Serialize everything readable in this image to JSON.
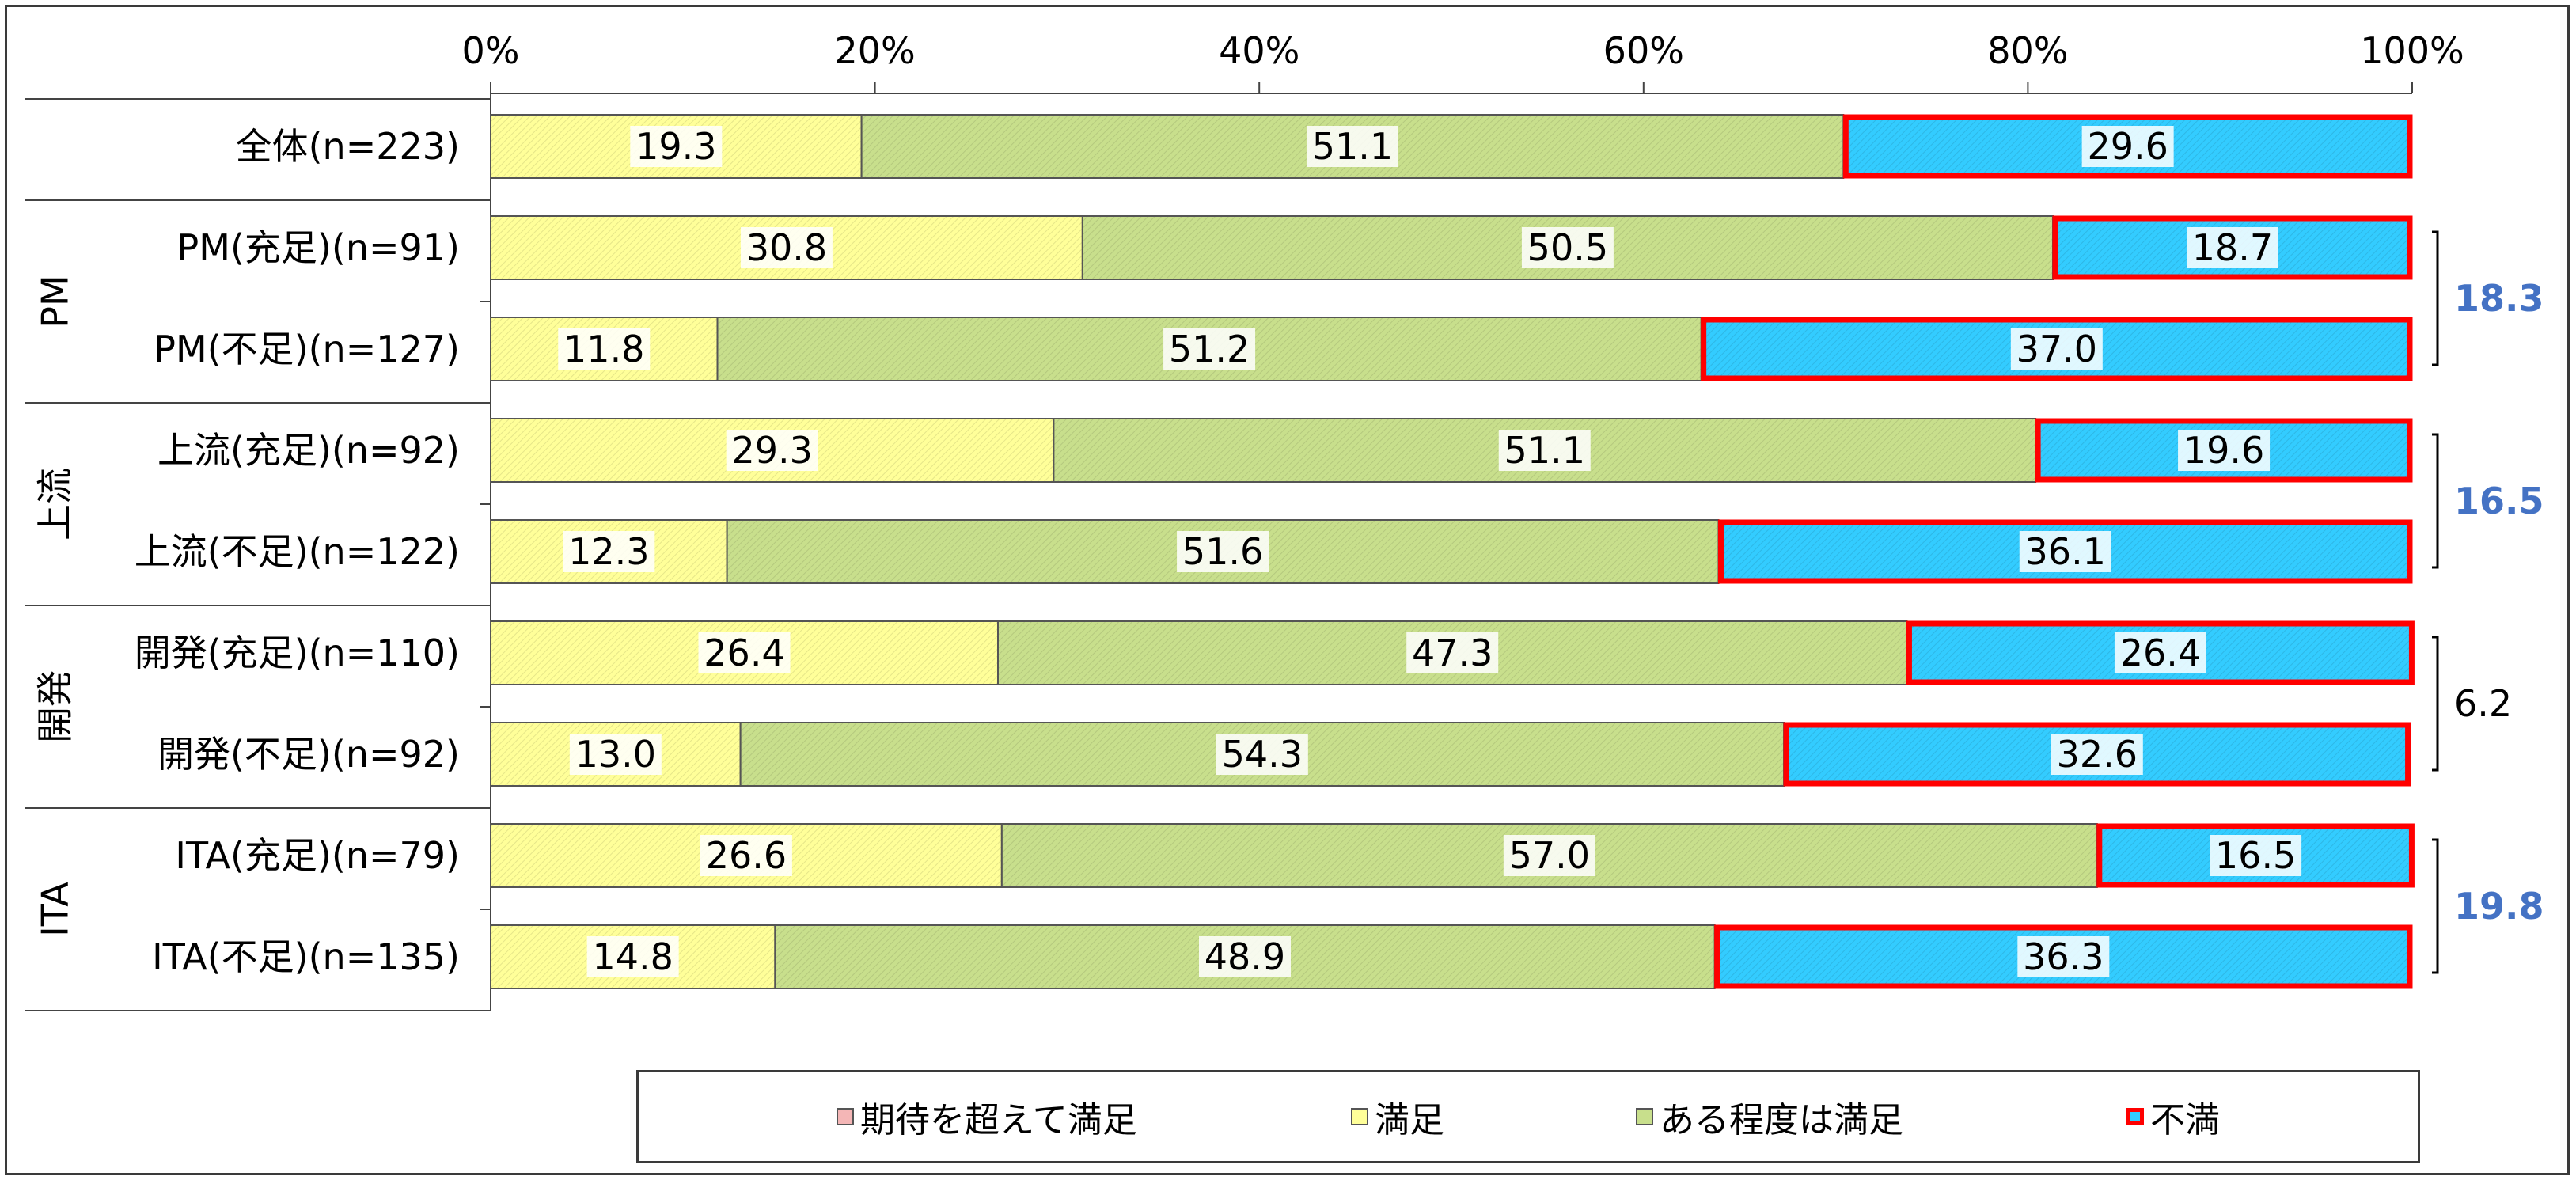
{
  "chart_data": {
    "type": "bar",
    "orientation": "horizontal",
    "stacked": true,
    "percent": true,
    "xlim": [
      0,
      100
    ],
    "x_ticks": [
      "0%",
      "20%",
      "40%",
      "60%",
      "80%",
      "100%"
    ],
    "categories": [
      "全体(n=223)",
      "PM(充足)(n=91)",
      "PM(不足)(n=127)",
      "上流(充足)(n=92)",
      "上流(不足)(n=122)",
      "開発(充足)(n=110)",
      "開発(不足)(n=92)",
      "ITA(充足)(n=79)",
      "ITA(不足)(n=135)"
    ],
    "groups": [
      {
        "name": "PM",
        "rows": [
          1,
          2
        ],
        "diff": "18.3",
        "diff_color": "#4472c4"
      },
      {
        "name": "上流",
        "rows": [
          3,
          4
        ],
        "diff": "16.5",
        "diff_color": "#4472c4"
      },
      {
        "name": "開発",
        "rows": [
          5,
          6
        ],
        "diff": "6.2",
        "diff_color": "#000000"
      },
      {
        "name": "ITA",
        "rows": [
          7,
          8
        ],
        "diff": "19.8",
        "diff_color": "#4472c4"
      }
    ],
    "series": [
      {
        "name": "期待を超えて満足",
        "color": "#f4b6b6",
        "values": [
          0.0,
          0.0,
          0.0,
          0.0,
          0.0,
          0.0,
          0.0,
          0.0,
          0.0
        ],
        "labels": [
          "0.0",
          "0.0",
          "0.0",
          "0.0",
          "0.0",
          "0.0",
          "0.0",
          "0.0",
          "0.0"
        ]
      },
      {
        "name": "満足",
        "color": "#ffff99",
        "values": [
          19.3,
          30.8,
          11.8,
          29.3,
          12.3,
          26.4,
          13.0,
          26.6,
          14.8
        ],
        "labels": [
          "19.3",
          "30.8",
          "11.8",
          "29.3",
          "12.3",
          "26.4",
          "13.0",
          "26.6",
          "14.8"
        ]
      },
      {
        "name": "ある程度は満足",
        "color": "#c8df8c",
        "values": [
          51.1,
          50.5,
          51.2,
          51.1,
          51.6,
          47.3,
          54.3,
          57.0,
          48.9
        ],
        "labels": [
          "51.1",
          "50.5",
          "51.2",
          "51.1",
          "51.6",
          "47.3",
          "54.3",
          "57.0",
          "48.9"
        ]
      },
      {
        "name": "不満",
        "color": "#33ccff",
        "outline": "#ff0000",
        "values": [
          29.6,
          18.7,
          37.0,
          19.6,
          36.1,
          26.4,
          32.6,
          16.5,
          36.3
        ],
        "labels": [
          "29.6",
          "18.7",
          "37.0",
          "19.6",
          "36.1",
          "26.4",
          "32.6",
          "16.5",
          "36.3"
        ]
      }
    ],
    "legend_position": "bottom"
  }
}
